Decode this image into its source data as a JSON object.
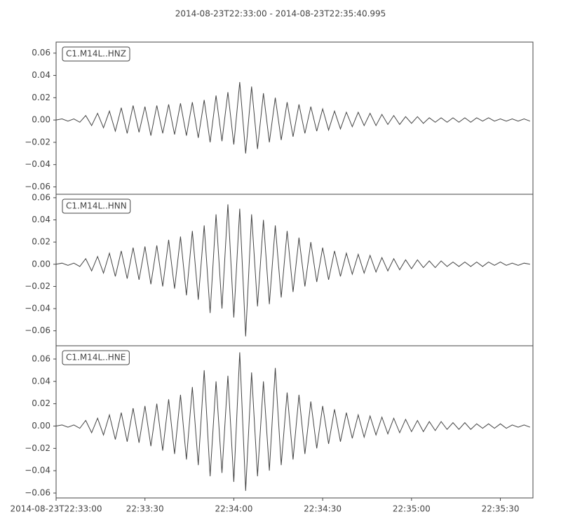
{
  "chart_data": [
    {
      "type": "line",
      "title": "2014-08-23T22:33:00  -  2014-08-23T22:35:40.995",
      "label": "C1.M14L..HNZ",
      "color": "#444444",
      "xlim": [
        0,
        160.995
      ],
      "ylim": [
        -0.0666,
        0.0699
      ],
      "yticks": [
        {
          "value": -0.06,
          "label": "−0.06"
        },
        {
          "value": -0.04,
          "label": "−0.04"
        },
        {
          "value": -0.02,
          "label": "−0.02"
        },
        {
          "value": 0,
          "label": "0.00"
        },
        {
          "value": 0.02,
          "label": "0.02"
        },
        {
          "value": 0.04,
          "label": "0.04"
        },
        {
          "value": 0.06,
          "label": "0.06"
        }
      ],
      "x": [
        0,
        2,
        4,
        6,
        8,
        10,
        12,
        14,
        16,
        18,
        20,
        22,
        24,
        26,
        28,
        30,
        32,
        34,
        36,
        38,
        40,
        42,
        44,
        46,
        48,
        50,
        52,
        54,
        56,
        58,
        60,
        62,
        64,
        66,
        68,
        70,
        72,
        74,
        76,
        78,
        80,
        82,
        84,
        86,
        88,
        90,
        92,
        94,
        96,
        98,
        100,
        102,
        104,
        106,
        108,
        110,
        112,
        114,
        116,
        118,
        120,
        122,
        124,
        126,
        128,
        130,
        132,
        134,
        136,
        138,
        140,
        142,
        144,
        146,
        148,
        150,
        152,
        154,
        156,
        158,
        160
      ],
      "values": [
        0,
        0.001,
        -0.001,
        0.001,
        -0.002,
        0.004,
        -0.005,
        0.006,
        -0.007,
        0.008,
        -0.01,
        0.011,
        -0.012,
        0.013,
        -0.011,
        0.012,
        -0.014,
        0.013,
        -0.012,
        0.014,
        -0.013,
        0.015,
        -0.014,
        0.016,
        -0.016,
        0.018,
        -0.02,
        0.022,
        -0.019,
        0.025,
        -0.022,
        0.034,
        -0.03,
        0.03,
        -0.026,
        0.024,
        -0.02,
        0.02,
        -0.018,
        0.016,
        -0.015,
        0.014,
        -0.012,
        0.012,
        -0.01,
        0.01,
        -0.009,
        0.008,
        -0.008,
        0.007,
        -0.006,
        0.007,
        -0.005,
        0.006,
        -0.005,
        0.005,
        -0.004,
        0.004,
        -0.004,
        0.003,
        -0.003,
        0.003,
        -0.003,
        0.002,
        -0.002,
        0.002,
        -0.002,
        0.002,
        -0.002,
        0.002,
        -0.002,
        0.002,
        -0.001,
        0.002,
        -0.001,
        0.001,
        -0.001,
        0.001,
        -0.001,
        0.001,
        -0.001
      ]
    },
    {
      "type": "line",
      "label": "C1.M14L..HNN",
      "color": "#444444",
      "xlim": [
        0,
        160.995
      ],
      "ylim": [
        -0.0735,
        0.0631
      ],
      "yticks": [
        {
          "value": -0.06,
          "label": "−0.06"
        },
        {
          "value": -0.04,
          "label": "−0.04"
        },
        {
          "value": -0.02,
          "label": "−0.02"
        },
        {
          "value": 0,
          "label": "0.00"
        },
        {
          "value": 0.02,
          "label": "0.02"
        },
        {
          "value": 0.04,
          "label": "0.04"
        },
        {
          "value": 0.06,
          "label": "0.06"
        }
      ],
      "x": [
        0,
        2,
        4,
        6,
        8,
        10,
        12,
        14,
        16,
        18,
        20,
        22,
        24,
        26,
        28,
        30,
        32,
        34,
        36,
        38,
        40,
        42,
        44,
        46,
        48,
        50,
        52,
        54,
        56,
        58,
        60,
        62,
        64,
        66,
        68,
        70,
        72,
        74,
        76,
        78,
        80,
        82,
        84,
        86,
        88,
        90,
        92,
        94,
        96,
        98,
        100,
        102,
        104,
        106,
        108,
        110,
        112,
        114,
        116,
        118,
        120,
        122,
        124,
        126,
        128,
        130,
        132,
        134,
        136,
        138,
        140,
        142,
        144,
        146,
        148,
        150,
        152,
        154,
        156,
        158,
        160
      ],
      "values": [
        0,
        0.001,
        -0.001,
        0.001,
        -0.002,
        0.005,
        -0.006,
        0.007,
        -0.008,
        0.01,
        -0.011,
        0.012,
        -0.013,
        0.015,
        -0.014,
        0.016,
        -0.018,
        0.017,
        -0.02,
        0.022,
        -0.022,
        0.025,
        -0.028,
        0.03,
        -0.032,
        0.035,
        -0.044,
        0.045,
        -0.04,
        0.054,
        -0.048,
        0.05,
        -0.065,
        0.045,
        -0.038,
        0.04,
        -0.036,
        0.035,
        -0.03,
        0.03,
        -0.025,
        0.024,
        -0.02,
        0.02,
        -0.016,
        0.015,
        -0.014,
        0.012,
        -0.011,
        0.01,
        -0.009,
        0.009,
        -0.008,
        0.008,
        -0.007,
        0.006,
        -0.006,
        0.005,
        -0.005,
        0.004,
        -0.004,
        0.004,
        -0.003,
        0.003,
        -0.003,
        0.003,
        -0.002,
        0.002,
        -0.002,
        0.002,
        -0.002,
        0.002,
        -0.002,
        0.002,
        -0.001,
        0.002,
        -0.001,
        0.001,
        -0.001,
        0.001,
        0
      ]
    },
    {
      "type": "line",
      "label": "C1.M14L..HNE",
      "color": "#444444",
      "xlim": [
        0,
        160.995
      ],
      "ylim": [
        -0.0644,
        0.0719
      ],
      "yticks": [
        {
          "value": -0.06,
          "label": "−0.06"
        },
        {
          "value": -0.04,
          "label": "−0.04"
        },
        {
          "value": -0.02,
          "label": "−0.02"
        },
        {
          "value": 0,
          "label": "0.00"
        },
        {
          "value": 0.02,
          "label": "0.02"
        },
        {
          "value": 0.04,
          "label": "0.04"
        },
        {
          "value": 0.06,
          "label": "0.06"
        }
      ],
      "xticks": [
        {
          "value": 0,
          "label": "2014-08-23T22:33:00"
        },
        {
          "value": 30,
          "label": "22:33:30"
        },
        {
          "value": 60,
          "label": "22:34:00"
        },
        {
          "value": 90,
          "label": "22:34:30"
        },
        {
          "value": 120,
          "label": "22:35:00"
        },
        {
          "value": 150,
          "label": "22:35:30"
        }
      ],
      "x": [
        0,
        2,
        4,
        6,
        8,
        10,
        12,
        14,
        16,
        18,
        20,
        22,
        24,
        26,
        28,
        30,
        32,
        34,
        36,
        38,
        40,
        42,
        44,
        46,
        48,
        50,
        52,
        54,
        56,
        58,
        60,
        62,
        64,
        66,
        68,
        70,
        72,
        74,
        76,
        78,
        80,
        82,
        84,
        86,
        88,
        90,
        92,
        94,
        96,
        98,
        100,
        102,
        104,
        106,
        108,
        110,
        112,
        114,
        116,
        118,
        120,
        122,
        124,
        126,
        128,
        130,
        132,
        134,
        136,
        138,
        140,
        142,
        144,
        146,
        148,
        150,
        152,
        154,
        156,
        158,
        160
      ],
      "values": [
        0,
        0.001,
        -0.001,
        0.001,
        -0.002,
        0.005,
        -0.006,
        0.007,
        -0.008,
        0.01,
        -0.012,
        0.012,
        -0.014,
        0.016,
        -0.015,
        0.018,
        -0.018,
        0.02,
        -0.022,
        0.024,
        -0.025,
        0.028,
        -0.03,
        0.035,
        -0.035,
        0.05,
        -0.045,
        0.04,
        -0.042,
        0.045,
        -0.05,
        0.066,
        -0.058,
        0.048,
        -0.045,
        0.04,
        -0.04,
        0.052,
        -0.035,
        0.03,
        -0.03,
        0.028,
        -0.025,
        0.022,
        -0.02,
        0.018,
        -0.016,
        0.015,
        -0.014,
        0.012,
        -0.011,
        0.01,
        -0.01,
        0.009,
        -0.008,
        0.008,
        -0.007,
        0.007,
        -0.006,
        0.006,
        -0.005,
        0.005,
        -0.005,
        0.004,
        -0.004,
        0.004,
        -0.003,
        0.003,
        -0.003,
        0.003,
        -0.003,
        0.002,
        -0.002,
        0.002,
        -0.002,
        0.002,
        -0.002,
        0.001,
        -0.001,
        0.001,
        -0.001
      ]
    }
  ]
}
